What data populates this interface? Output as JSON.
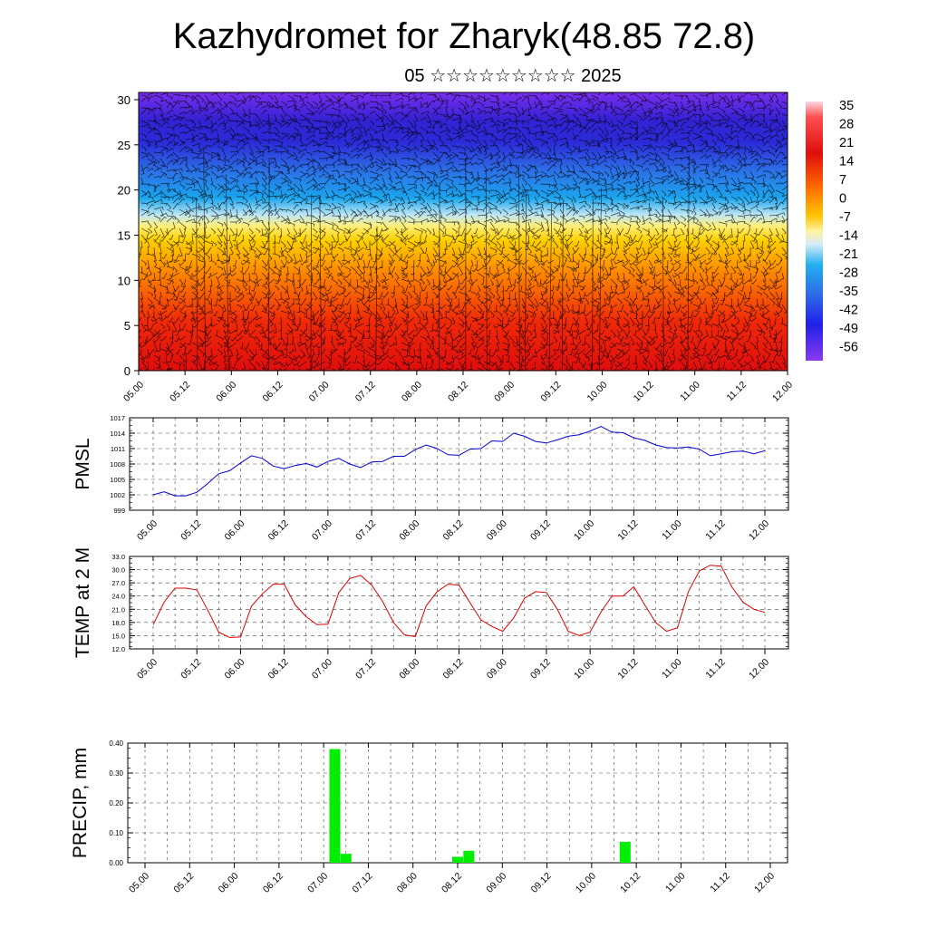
{
  "title": "Kazhydromet for Zharyk(48.85 72.8)",
  "subtitle": "05 ☆☆☆☆☆☆☆☆☆ 2025",
  "time_ticks": [
    "05.00",
    "05.12",
    "06.00",
    "06.12",
    "07.00",
    "07.12",
    "08.00",
    "08.12",
    "09.00",
    "09.12",
    "10.00",
    "10.12",
    "11.00",
    "11.12",
    "12.00"
  ],
  "chart_data": [
    {
      "id": "temperature-cross-section",
      "type": "heatmap",
      "y_ticks": [
        0,
        5,
        10,
        15,
        20,
        25,
        30
      ],
      "ylim": [
        0,
        30.8
      ],
      "colorbar_labels": [
        "35",
        "28",
        "21",
        "14",
        "7",
        "0",
        "-7",
        "-14",
        "-21",
        "-28",
        "-35",
        "-42",
        "-49",
        "-56"
      ],
      "colors": {
        "hot": "#dd1010",
        "warm": "#ff7a00",
        "yellow": "#ffe45a",
        "cold": "#1aa6ee",
        "blue": "#2b2bd8",
        "violet": "#7a2ff0",
        "wind_barbs": "#000000"
      }
    },
    {
      "id": "pmsl",
      "type": "line",
      "ylabel": "PMSL",
      "y_ticks": [
        "1017",
        "1014",
        "1011",
        "1008",
        "1005",
        "1002",
        "999"
      ],
      "ylim": [
        999,
        1017
      ],
      "color": "#0000cc",
      "values": [
        1002.0,
        1002.6,
        1001.8,
        1001.8,
        1002.5,
        1004.2,
        1006.1,
        1006.7,
        1008.2,
        1009.6,
        1009.1,
        1007.6,
        1007.1,
        1007.7,
        1008.1,
        1007.4,
        1008.5,
        1009.1,
        1008.0,
        1007.3,
        1008.4,
        1008.5,
        1009.5,
        1009.5,
        1010.8,
        1011.7,
        1011.0,
        1009.8,
        1009.7,
        1010.9,
        1011.0,
        1012.5,
        1012.4,
        1014.0,
        1013.4,
        1012.4,
        1012.1,
        1012.7,
        1013.4,
        1013.7,
        1014.4,
        1015.3,
        1014.2,
        1014.1,
        1013.1,
        1012.6,
        1011.7,
        1011.2,
        1011.1,
        1011.3,
        1010.9,
        1009.6,
        1010.0,
        1010.4,
        1010.5,
        1010.0,
        1010.6
      ]
    },
    {
      "id": "temp-2m",
      "type": "line",
      "ylabel": "TEMP at 2 M",
      "y_ticks": [
        "33.0",
        "30.0",
        "27.0",
        "24.0",
        "21.0",
        "18.0",
        "15.0",
        "12.0"
      ],
      "ylim": [
        12,
        33
      ],
      "color": "#dd0000",
      "values": [
        17.5,
        22.6,
        25.8,
        25.8,
        25.4,
        20.8,
        15.8,
        14.6,
        14.7,
        21.7,
        24.5,
        26.7,
        26.7,
        22.0,
        19.3,
        17.5,
        17.6,
        24.8,
        28.0,
        28.7,
        26.5,
        22.8,
        18.0,
        15.2,
        14.8,
        21.8,
        25.0,
        26.7,
        26.5,
        22.5,
        18.6,
        17.1,
        16.0,
        19.0,
        23.5,
        25.0,
        24.8,
        21.0,
        16.0,
        15.0,
        15.8,
        20.4,
        24.0,
        24.0,
        26.1,
        22.0,
        18.0,
        16.0,
        16.8,
        25.0,
        29.7,
        31.0,
        30.8,
        26.0,
        22.6,
        21.0,
        20.3
      ]
    },
    {
      "id": "precip",
      "type": "bar",
      "ylabel": "PRECIP, mm",
      "y_ticks": [
        "0.40",
        "0.30",
        "0.20",
        "0.10",
        "0.00"
      ],
      "ylim": [
        0,
        0.4
      ],
      "color": "#00ee00",
      "bars": [
        {
          "time_hours": 51,
          "value": 0.38
        },
        {
          "time_hours": 54,
          "value": 0.03
        },
        {
          "time_hours": 84,
          "value": 0.02
        },
        {
          "time_hours": 87,
          "value": 0.04
        },
        {
          "time_hours": 129,
          "value": 0.07
        }
      ]
    }
  ]
}
